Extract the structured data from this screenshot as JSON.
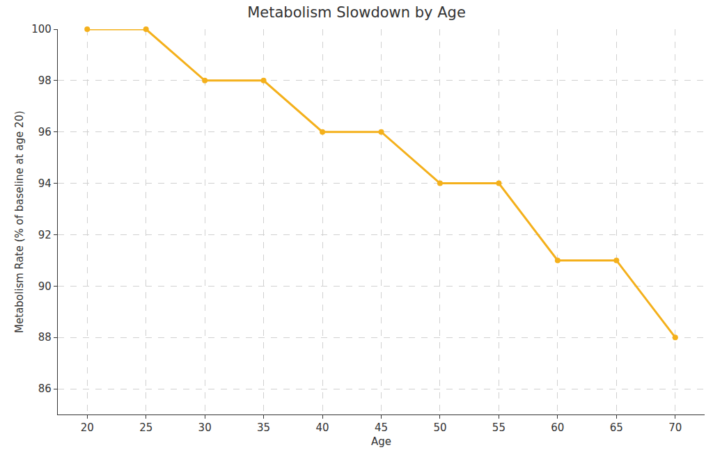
{
  "chart_data": {
    "type": "line",
    "title": "Metabolism Slowdown by Age",
    "x_label": "Age",
    "y_label": "Metabolism Rate (% of baseline at age 20)",
    "x": [
      20,
      25,
      30,
      35,
      40,
      45,
      50,
      55,
      60,
      65,
      70
    ],
    "values": [
      100,
      100,
      98,
      98,
      96,
      96,
      94,
      94,
      91,
      91,
      88
    ],
    "color": "#f4b01b",
    "marker": "circle",
    "line_style": "solid",
    "xlim": [
      17.5,
      72.5
    ],
    "xticks": [
      20,
      25,
      30,
      35,
      40,
      45,
      50,
      55,
      60,
      65,
      70
    ],
    "ylim": [
      85,
      100
    ],
    "yticks": [
      86,
      88,
      90,
      92,
      94,
      96,
      98,
      100
    ],
    "grid": true
  }
}
